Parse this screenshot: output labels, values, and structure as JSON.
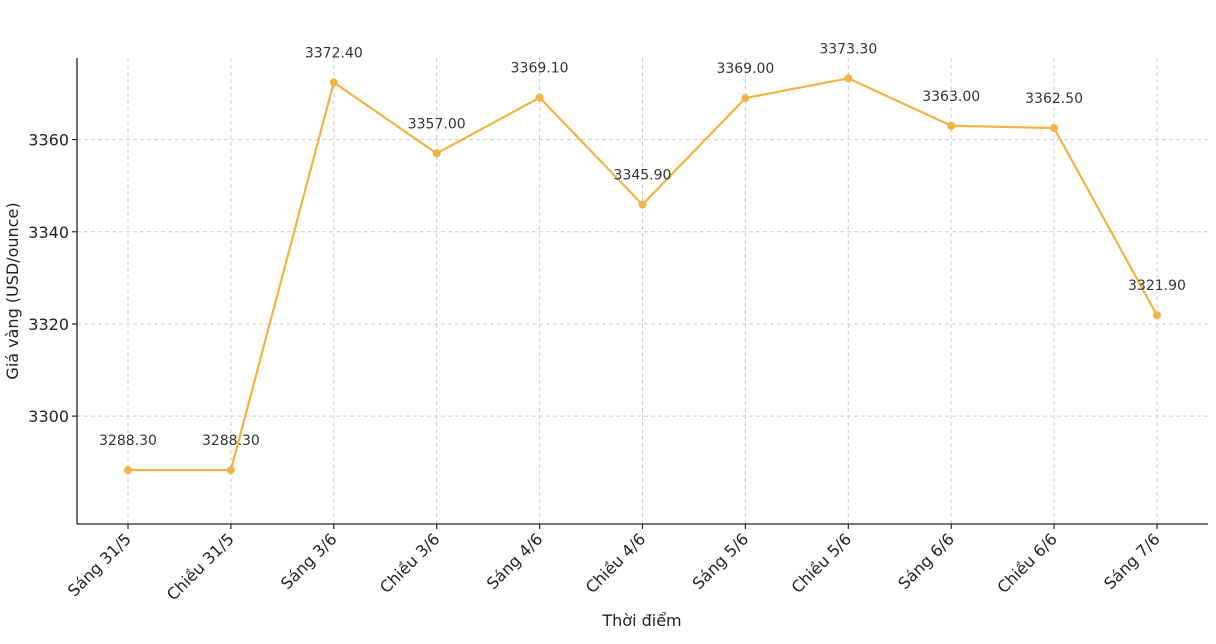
{
  "chart_data": {
    "type": "line",
    "title": "",
    "xlabel": "Thời điểm",
    "ylabel": "Giá vàng (USD/ounce)",
    "categories": [
      "Sáng 31/5",
      "Chiều 31/5",
      "Sáng 3/6",
      "Chiều 3/6",
      "Sáng 4/6",
      "Chiều 4/6",
      "Sáng 5/6",
      "Chiều 5/6",
      "Sáng 6/6",
      "Chiều 6/6",
      "Sáng 7/6"
    ],
    "values": [
      3288.3,
      3288.3,
      3372.4,
      3357.0,
      3369.1,
      3345.9,
      3369.0,
      3373.3,
      3363.0,
      3362.5,
      3321.9
    ],
    "data_labels": [
      "3288.30",
      "3288.30",
      "3372.40",
      "3357.00",
      "3369.10",
      "3345.90",
      "3369.00",
      "3373.30",
      "3363.00",
      "3362.50",
      "3321.90"
    ],
    "yticks": [
      3300,
      3320,
      3340,
      3360
    ],
    "ytick_labels": [
      "3300",
      "3320",
      "3340",
      "3360"
    ],
    "ylim": [
      3276.6,
      3377.7
    ],
    "grid": true,
    "legend": "none",
    "colors": {
      "line": "#F0B443",
      "marker": "#F0B443",
      "grid": "#cccccc",
      "axis": "#222222"
    }
  }
}
